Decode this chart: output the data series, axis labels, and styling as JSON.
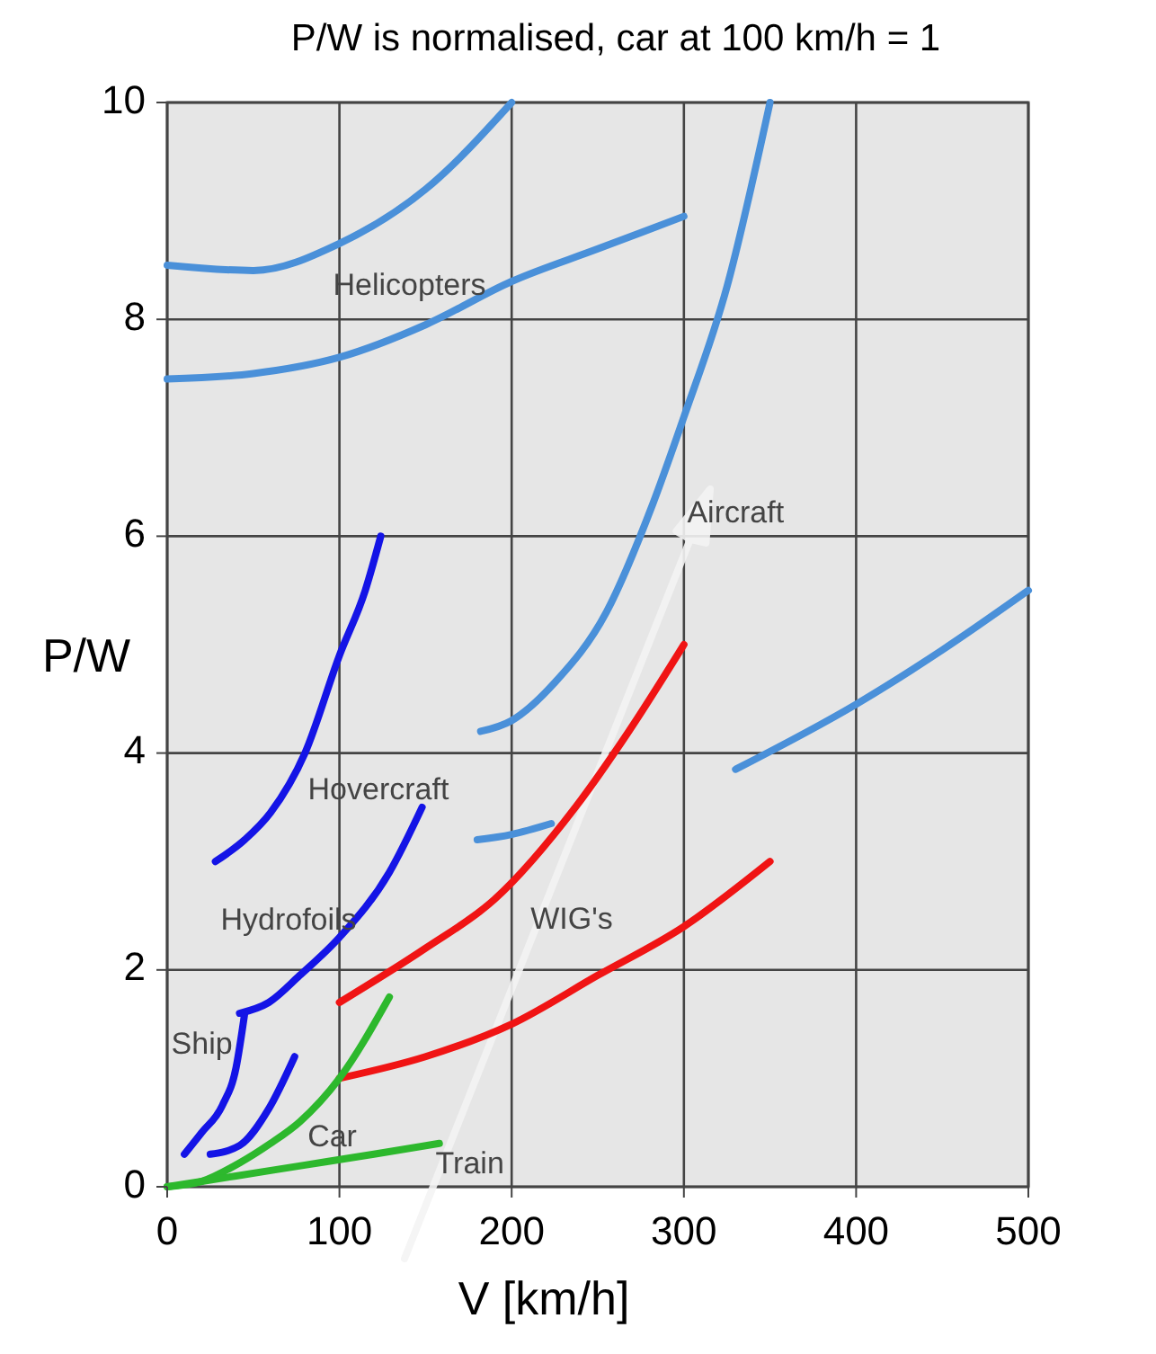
{
  "chart_data": {
    "type": "line",
    "title": "P/W is normalised, car at 100 km/h = 1",
    "xlabel": "V [km/h]",
    "ylabel": "P/W",
    "xlim": [
      0,
      500
    ],
    "xticks": [
      0,
      100,
      200,
      300,
      400,
      500
    ],
    "ylim": [
      0,
      10
    ],
    "yticks": [
      0,
      2,
      4,
      6,
      8,
      10
    ],
    "grid": true,
    "marker": "none",
    "line_style": "solid",
    "series": [
      {
        "name": "Helicopters",
        "color": "#4a90d9",
        "x": [
          0,
          50,
          100,
          150,
          200
        ],
        "values": [
          8.5,
          8.45,
          8.7,
          9.2,
          10
        ]
      },
      {
        "color": "#4a90d9",
        "x": [
          0,
          50,
          100,
          150,
          200,
          250,
          300
        ],
        "values": [
          7.45,
          7.5,
          7.65,
          7.95,
          8.35,
          8.65,
          8.95
        ]
      },
      {
        "name": "Aircraft",
        "color": "#4a90d9",
        "x": [
          182,
          200,
          225,
          255,
          282,
          300,
          325,
          350
        ],
        "values": [
          4.2,
          4.3,
          4.65,
          5.3,
          6.3,
          7.1,
          8.3,
          10
        ]
      },
      {
        "color": "#4a90d9",
        "x": [
          180,
          200,
          223,
          280,
          330,
          400,
          450,
          500
        ],
        "values": [
          3.2,
          3.25,
          3.35,
          null,
          3.85,
          4.45,
          4.95,
          5.5
        ]
      },
      {
        "name": "Hovercraft",
        "color": "#1414e6",
        "x": [
          28,
          45,
          60,
          80,
          100,
          115,
          124
        ],
        "values": [
          3.0,
          3.2,
          3.45,
          4.0,
          4.9,
          5.5,
          6.0
        ]
      },
      {
        "name": "Hydrofoils",
        "color": "#1414e6",
        "x": [
          42,
          59,
          77,
          100,
          129,
          148
        ],
        "values": [
          1.6,
          1.7,
          1.95,
          2.3,
          2.9,
          3.5
        ]
      },
      {
        "name": "Ship",
        "color": "#1414e6",
        "x": [
          10,
          20,
          32,
          40,
          45
        ],
        "values": [
          0.3,
          0.5,
          0.75,
          1.1,
          1.6
        ]
      },
      {
        "color": "#1414e6",
        "x": [
          25,
          42,
          59,
          74
        ],
        "values": [
          0.3,
          0.38,
          0.72,
          1.2
        ]
      },
      {
        "name": "WIG's",
        "color": "#f01414",
        "x": [
          100,
          150,
          190,
          237,
          268,
          300
        ],
        "values": [
          1.7,
          2.2,
          2.65,
          3.5,
          4.2,
          5.0
        ]
      },
      {
        "color": "#f01414",
        "x": [
          100,
          150,
          200,
          250,
          300,
          350
        ],
        "values": [
          1.0,
          1.2,
          1.5,
          1.95,
          2.4,
          3.0
        ]
      },
      {
        "name": "Car",
        "color": "#2db82d",
        "x": [
          0,
          20,
          42,
          60,
          77,
          100,
          129
        ],
        "values": [
          0,
          0.05,
          0.22,
          0.4,
          0.6,
          1.0,
          1.75
        ]
      },
      {
        "name": "Train",
        "color": "#2db82d",
        "x": [
          0,
          40,
          80,
          120,
          158
        ],
        "values": [
          0,
          0.1,
          0.2,
          0.3,
          0.4
        ]
      }
    ]
  }
}
